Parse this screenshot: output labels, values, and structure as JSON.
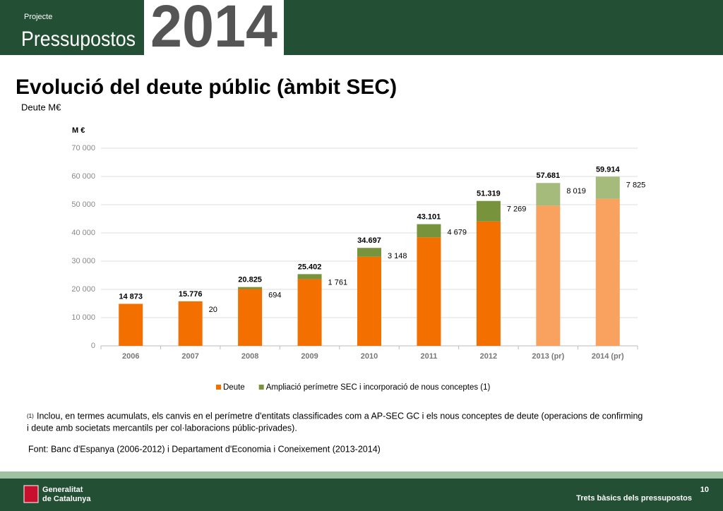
{
  "header": {
    "kicker": "Projecte",
    "title": "Pressupostos",
    "year": "2014"
  },
  "page_title": "Evolució del deute públic (àmbit SEC)",
  "subtitle": "Deute M€",
  "chart_data": {
    "type": "stacked_bar",
    "y_label": "M €",
    "categories": [
      "2006",
      "2007",
      "2008",
      "2009",
      "2010",
      "2011",
      "2012",
      "2013 (pr)",
      "2014 (pr)"
    ],
    "series": [
      {
        "name": "Deute",
        "color": "#f26f00",
        "point_colors": [
          "#f26f00",
          "#f26f00",
          "#f26f00",
          "#f26f00",
          "#f26f00",
          "#f26f00",
          "#f26f00",
          "#f9a15f",
          "#f9a15f"
        ],
        "values": [
          14873,
          15756,
          20131,
          23641,
          31549,
          38422,
          44050,
          49662,
          52089
        ]
      },
      {
        "name": "Ampliació perímetre SEC i incorporació de nous conceptes (1)",
        "color": "#77933c",
        "point_colors": [
          "#77933c",
          "#77933c",
          "#77933c",
          "#77933c",
          "#77933c",
          "#77933c",
          "#77933c",
          "#a5bb7c",
          "#a5bb7c"
        ],
        "values": [
          null,
          20,
          694,
          1761,
          3148,
          4679,
          7269,
          8019,
          7825
        ],
        "value_labels": [
          null,
          "20",
          "694",
          "1 761",
          "3 148",
          "4 679",
          "7 269",
          "8 019",
          "7 825"
        ]
      }
    ],
    "totals": {
      "values": [
        14873,
        15776,
        20825,
        25402,
        34697,
        43101,
        51319,
        57681,
        59914
      ],
      "value_labels": [
        "14 873",
        "15.776",
        "20.825",
        "25.402",
        "34.697",
        "43.101",
        "51.319",
        "57.681",
        "59.914"
      ]
    },
    "ylim": [
      0,
      70000
    ],
    "yticks": [
      0,
      {
        "value": 10000,
        "label": "10 000"
      },
      {
        "value": 20000,
        "label": "20 000"
      },
      {
        "value": 30000,
        "label": "30 000"
      },
      {
        "value": 40000,
        "label": "40 000"
      },
      {
        "value": 50000,
        "label": "50 000"
      },
      {
        "value": 60000,
        "label": "60 000"
      },
      {
        "value": 70000,
        "label": "70 000"
      }
    ],
    "grid": true,
    "legend": "bottom"
  },
  "footnote": {
    "marker": "(1)",
    "lines": [
      "Inclou, en termes acumulats, els canvis en el perímetre d'entitats classificades com a AP-SEC GC i els nous conceptes de deute (operacions de confirming",
      "i deute amb societats mercantils per col·laboracions públic-privades)."
    ]
  },
  "source": "Font: Banc d'Espanya (2006-2012) i Departament d'Economia i Coneixement  (2013-2014)",
  "footer": {
    "org_line1": "Generalitat",
    "org_line2": "de Catalunya",
    "page": "10",
    "caption": "Trets bàsics dels pressupostos"
  }
}
